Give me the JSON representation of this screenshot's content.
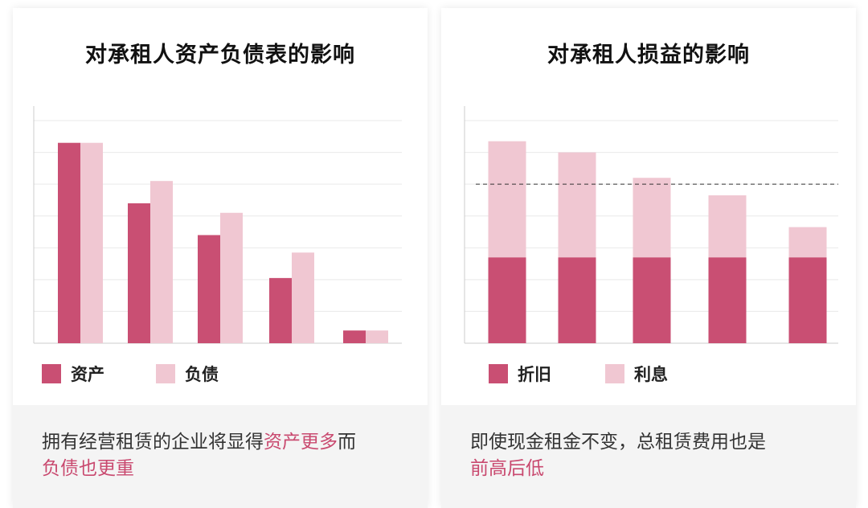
{
  "colors": {
    "primary": "#c94f73",
    "secondary": "#f0c7d2",
    "highlight": "#c9496f",
    "grid": "#e9e9e9",
    "axis": "#cccccc"
  },
  "panels": [
    {
      "title": "对承租人资产负债表的影响",
      "legend": [
        "资产",
        "负债"
      ],
      "caption": {
        "pre": "拥有经营租赁的企业将显得",
        "hl1": "资产更多",
        "mid": "而",
        "hl2": "负债也更重",
        "post": ""
      }
    },
    {
      "title": "对承租人损益的影响",
      "legend": [
        "折旧",
        "利息"
      ],
      "caption": {
        "pre": "即使现金租金不变，总租赁费用也是",
        "hl1": "前高后低",
        "mid": "",
        "hl2": "",
        "post": ""
      }
    }
  ],
  "chart_data": [
    {
      "type": "bar",
      "layout": "grouped",
      "title": "对承租人资产负债表的影响",
      "categories": [
        "",
        "",
        "",
        "",
        ""
      ],
      "series": [
        {
          "name": "资产",
          "values": [
            6.3,
            4.4,
            3.4,
            2.05,
            0.4
          ]
        },
        {
          "name": "负债",
          "values": [
            6.3,
            5.1,
            4.1,
            2.85,
            0.4
          ]
        }
      ],
      "ylim": [
        0,
        7
      ],
      "grid": true,
      "legend": "bottom-left"
    },
    {
      "type": "bar",
      "layout": "stacked",
      "title": "对承租人损益的影响",
      "categories": [
        "",
        "",
        "",
        "",
        ""
      ],
      "series": [
        {
          "name": "折旧",
          "values": [
            2.7,
            2.7,
            2.7,
            2.7,
            2.7
          ]
        },
        {
          "name": "利息",
          "values": [
            3.65,
            3.3,
            2.5,
            1.95,
            0.95
          ]
        }
      ],
      "reference_line": 5.0,
      "ylim": [
        0,
        7
      ],
      "grid": true,
      "legend": "bottom-left"
    }
  ]
}
